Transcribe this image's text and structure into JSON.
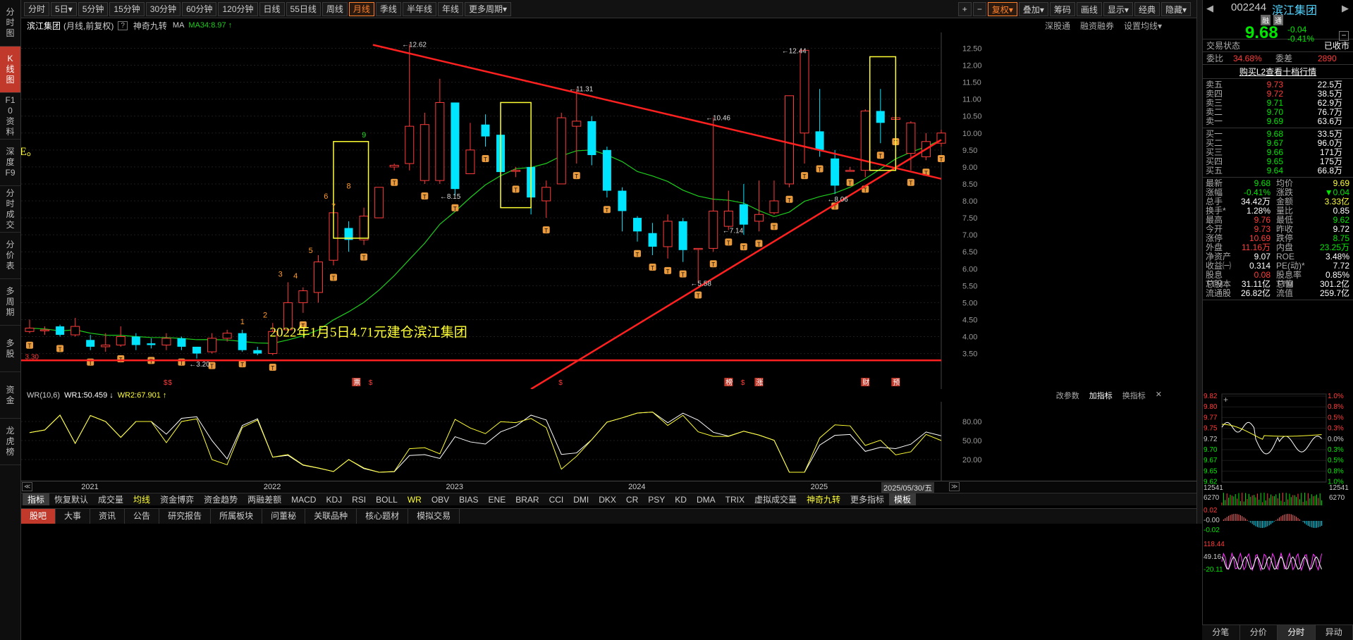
{
  "left_nav": [
    "分时图",
    "K线图",
    "F10资料",
    "深度F9",
    "分时成交",
    "分价表",
    "多周期",
    "多股",
    "资金",
    "龙虎榜"
  ],
  "periods": [
    "分时",
    "5日▾",
    "5分钟",
    "15分钟",
    "30分钟",
    "60分钟",
    "120分钟",
    "日线",
    "55日线",
    "周线",
    "月线",
    "季线",
    "半年线",
    "年线",
    "更多周期▾"
  ],
  "active_period": "月线",
  "top_right": [
    "+",
    "−",
    "复权▾",
    "叠加▾",
    "筹码",
    "画线",
    "显示▾",
    "经典",
    "隐藏▾"
  ],
  "info": {
    "name": "滨江集团",
    "mode": "(月线,前复权)",
    "q": "?",
    "nine": "神奇九转",
    "ma": "MA",
    "ma34": "MA34:8.97",
    "ma_arrow": "↑",
    "right": [
      "深股通",
      "融资融券",
      "设置均线▾"
    ]
  },
  "sub_info": {
    "wr": "WR(10,6)",
    "wr1": "WR1:50.459",
    "wr1_arrow": "↓",
    "wr2": "WR2:67.901",
    "wr2_arrow": "↑",
    "right": [
      "改参数",
      "加指标",
      "换指标",
      "✕"
    ]
  },
  "annotation_text": "2022年1月5日4.71元建仓滨江集团",
  "e_mark": "E。",
  "y_axis": [
    "12.50",
    "12.00",
    "11.50",
    "11.00",
    "10.50",
    "10.00",
    "9.50",
    "9.00",
    "8.50",
    "8.00",
    "7.50",
    "7.00",
    "6.50",
    "6.00",
    "5.50",
    "5.00",
    "4.50",
    "4.00",
    "3.50"
  ],
  "sub_y_axis": [
    "80.00",
    "50.00",
    "20.00"
  ],
  "price_labels": [
    "12.62",
    "12.44",
    "11.31",
    "10.46",
    "8.15",
    "8.06",
    "7.14",
    "5.58",
    "3.20",
    "3.30"
  ],
  "td_counts": [
    "1",
    "2",
    "3",
    "4",
    "5",
    "6",
    "7",
    "8",
    "9"
  ],
  "event_markers": [
    "$",
    "$",
    "票",
    "$",
    "$",
    "榜",
    "$",
    "涨",
    "财",
    "预"
  ],
  "years": [
    "2021",
    "2022",
    "2023",
    "2024",
    "2025"
  ],
  "date_badge": "2025/05/30/五",
  "indicator_tabs": [
    "指标",
    "恢复默认",
    "成交量",
    "均线",
    "资金博弈",
    "资金趋势",
    "两融差额",
    "MACD",
    "KDJ",
    "RSI",
    "BOLL",
    "WR",
    "OBV",
    "BIAS",
    "ENE",
    "BRAR",
    "CCI",
    "DMI",
    "DKX",
    "CR",
    "PSY",
    "KD",
    "DMA",
    "TRIX",
    "虚拟成交量",
    "神奇九转",
    "更多指标",
    "模板"
  ],
  "active_indicator": "指标",
  "bottom_tabs": [
    "股吧",
    "大事",
    "资讯",
    "公告",
    "研究报告",
    "所属板块",
    "问董秘",
    "关联品种",
    "核心题材",
    "模拟交易"
  ],
  "active_bottom": "股吧",
  "stock": {
    "code": "002244",
    "name": "滨江集团",
    "price": "9.68",
    "change": "-0.04",
    "pct": "-0.41%",
    "badge1": "融",
    "badge2": "通"
  },
  "status_label": "交易状态",
  "status": "已收市",
  "weibi": {
    "l1": "委比",
    "v1": "34.68%",
    "l2": "委差",
    "v2": "2890"
  },
  "l2_link": "购买L2查看十档行情",
  "sells": [
    [
      "卖五",
      "9.73",
      "22.5万"
    ],
    [
      "卖四",
      "9.72",
      "38.5万"
    ],
    [
      "卖三",
      "9.71",
      "62.9万"
    ],
    [
      "卖二",
      "9.70",
      "76.7万"
    ],
    [
      "卖一",
      "9.69",
      "63.6万"
    ]
  ],
  "buys": [
    [
      "买一",
      "9.68",
      "33.5万"
    ],
    [
      "买二",
      "9.67",
      "96.0万"
    ],
    [
      "买三",
      "9.66",
      "171万"
    ],
    [
      "买四",
      "9.65",
      "175万"
    ],
    [
      "买五",
      "9.64",
      "66.8万"
    ]
  ],
  "stats": [
    [
      "最新",
      "9.68",
      "均价",
      "9.69"
    ],
    [
      "涨幅",
      "-0.41%",
      "涨跌",
      "▼0.04"
    ],
    [
      "总手",
      "34.42万",
      "金额",
      "3.33亿"
    ],
    [
      "换手*",
      "1.28%",
      "量比",
      "0.85"
    ],
    [
      "最高",
      "9.76",
      "最低",
      "9.62"
    ],
    [
      "今开",
      "9.73",
      "昨收",
      "9.72"
    ],
    [
      "涨停",
      "10.69",
      "跌停",
      "8.75"
    ],
    [
      "外盘",
      "11.16万",
      "内盘",
      "23.25万"
    ],
    [
      "净资产",
      "9.07",
      "ROE",
      "3.48%"
    ],
    [
      "收益㈠",
      "0.314",
      "PE(动)*",
      "7.72"
    ],
    [
      "股息TTM",
      "0.08",
      "股息率TTM",
      "0.85%"
    ],
    [
      "总股本",
      "31.11亿",
      "总值",
      "301.2亿"
    ],
    [
      "流通股",
      "26.82亿",
      "流值",
      "259.7亿"
    ]
  ],
  "mini": {
    "left": [
      "9.82",
      "9.80",
      "9.77",
      "9.75",
      "9.72",
      "9.70",
      "9.67",
      "9.65",
      "9.62"
    ],
    "right": [
      "1.0%",
      "0.8%",
      "0.5%",
      "0.3%",
      "0.0%",
      "0.3%",
      "0.5%",
      "0.8%",
      "1.0%"
    ],
    "vol_left": [
      "12541",
      "6270"
    ],
    "vol_right": [
      "12541",
      "6270"
    ],
    "macd": [
      "0.02",
      "-0.00",
      "-0.02"
    ],
    "kdj": [
      "118.44",
      "49.16",
      "-20.11"
    ]
  },
  "mini_tabs": [
    "分笔",
    "分价",
    "分时",
    "异动"
  ],
  "active_mini": "分时",
  "chart_data": {
    "type": "candlestick",
    "title": "滨江集团 (月线,前复权)",
    "ylim": [
      3.2,
      12.8
    ],
    "ma_name": "MA34",
    "candles": [
      [
        4.15,
        4.25,
        4.5,
        4.1
      ],
      [
        4.2,
        4.2,
        4.3,
        4.05
      ],
      [
        4.3,
        4.05,
        4.35,
        4.0
      ],
      [
        4.05,
        4.3,
        4.55,
        4.0
      ],
      [
        3.9,
        3.7,
        4.05,
        3.6
      ],
      [
        3.7,
        3.75,
        4.1,
        3.55
      ],
      [
        3.75,
        4.0,
        4.3,
        3.7
      ],
      [
        4.0,
        3.75,
        4.1,
        3.6
      ],
      [
        3.8,
        3.75,
        3.95,
        3.65
      ],
      [
        3.75,
        3.95,
        4.1,
        3.6
      ],
      [
        3.95,
        3.7,
        4.0,
        3.6
      ],
      [
        3.7,
        3.5,
        3.7,
        3.35
      ],
      [
        3.55,
        3.95,
        4.1,
        3.5
      ],
      [
        3.95,
        4.1,
        4.2,
        3.85
      ],
      [
        4.1,
        3.6,
        4.2,
        3.55
      ],
      [
        3.6,
        3.5,
        3.7,
        3.45
      ],
      [
        3.5,
        4.15,
        4.4,
        3.45
      ],
      [
        4.2,
        5.0,
        5.6,
        4.1
      ],
      [
        5.0,
        5.35,
        5.45,
        4.7
      ],
      [
        5.3,
        6.2,
        6.4,
        5.0
      ],
      [
        6.25,
        7.65,
        7.7,
        6.1
      ],
      [
        7.2,
        6.85,
        7.4,
        6.5
      ],
      [
        6.85,
        7.55,
        7.8,
        6.7
      ],
      [
        7.5,
        8.4,
        8.4,
        7.5
      ],
      [
        9.0,
        9.05,
        9.1,
        8.9
      ],
      [
        9.1,
        10.2,
        12.62,
        8.9
      ],
      [
        8.6,
        10.25,
        10.6,
        8.5
      ],
      [
        8.6,
        10.9,
        11.6,
        8.5
      ],
      [
        10.9,
        8.35,
        10.9,
        8.15
      ],
      [
        8.8,
        9.5,
        10.3,
        8.8
      ],
      [
        10.25,
        9.9,
        10.55,
        9.6
      ],
      [
        9.95,
        8.85,
        10.2,
        8.6
      ],
      [
        8.9,
        8.9,
        9.0,
        8.7
      ],
      [
        9.0,
        8.1,
        9.3,
        7.6
      ],
      [
        8.0,
        8.4,
        8.6,
        7.5
      ],
      [
        8.5,
        10.45,
        10.6,
        8.5
      ],
      [
        10.2,
        10.35,
        11.31,
        9.1
      ],
      [
        10.35,
        9.35,
        10.5,
        9.05
      ],
      [
        9.5,
        8.3,
        9.6,
        8.1
      ],
      [
        8.3,
        7.7,
        8.4,
        7.1
      ],
      [
        7.5,
        7.1,
        7.55,
        6.8
      ],
      [
        7.05,
        6.65,
        7.35,
        6.4
      ],
      [
        6.65,
        7.4,
        7.6,
        6.3
      ],
      [
        7.4,
        6.55,
        7.5,
        6.2
      ],
      [
        6.6,
        6.6,
        6.6,
        5.58
      ],
      [
        6.6,
        7.7,
        10.46,
        6.5
      ],
      [
        7.25,
        7.7,
        8.3,
        7.14
      ],
      [
        7.9,
        7.3,
        8.5,
        7.0
      ],
      [
        7.4,
        7.6,
        8.6,
        7.1
      ],
      [
        7.65,
        8.0,
        8.6,
        7.6
      ],
      [
        8.5,
        11.1,
        11.1,
        8.4
      ],
      [
        10.0,
        12.44,
        12.44,
        9.1
      ],
      [
        10.05,
        9.5,
        11.3,
        9.3
      ],
      [
        9.25,
        8.45,
        9.5,
        8.2
      ],
      [
        8.9,
        8.9,
        9.0,
        8.9
      ],
      [
        8.9,
        10.65,
        10.7,
        8.7
      ],
      [
        10.65,
        10.3,
        11.3,
        9.7
      ],
      [
        10.4,
        10.45,
        10.9,
        10.1
      ],
      [
        9.4,
        10.3,
        10.35,
        8.9
      ],
      [
        9.3,
        9.75,
        10.0,
        9.2
      ],
      [
        9.7,
        10.0,
        10.1,
        9.6
      ]
    ]
  }
}
